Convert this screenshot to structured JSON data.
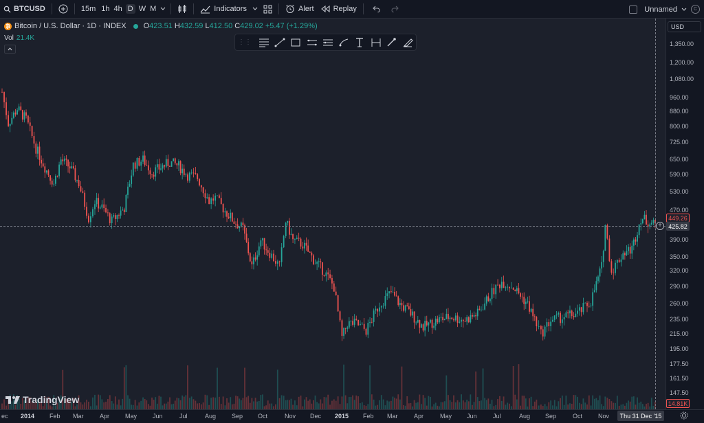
{
  "toolbar": {
    "symbol": "BTCUSD",
    "intervals": [
      "15m",
      "1h",
      "4h",
      "D",
      "W",
      "M"
    ],
    "active_interval": "D",
    "indicators_label": "Indicators",
    "alert_label": "Alert",
    "replay_label": "Replay",
    "layout_name": "Unnamed"
  },
  "legend": {
    "title": "Bitcoin / U.S. Dollar · 1D · INDEX",
    "open_k": "O",
    "open": "423.51",
    "high_k": "H",
    "high": "432.59",
    "low_k": "L",
    "low": "412.50",
    "close_k": "C",
    "close": "429.02",
    "change": "+5.47 (+1.29%)",
    "vol_label": "Vol",
    "vol_value": "21.4K"
  },
  "price_axis": {
    "currency": "USD",
    "labels": [
      "1,350.00",
      "1,200.00",
      "1,080.00",
      "960.00",
      "880.00",
      "800.00",
      "725.00",
      "650.00",
      "590.00",
      "530.00",
      "470.00",
      "390.00",
      "350.00",
      "320.00",
      "290.00",
      "260.00",
      "235.00",
      "215.00",
      "195.00",
      "177.50",
      "161.50",
      "147.50"
    ],
    "last_price": "449.26",
    "crosshair_price": "425.82",
    "volume_tag": "14.81K"
  },
  "time_axis": {
    "labels": [
      "ec",
      "2014",
      "Feb",
      "Mar",
      "Apr",
      "May",
      "Jun",
      "Jul",
      "Aug",
      "Sep",
      "Oct",
      "Nov",
      "Dec",
      "2015",
      "Feb",
      "Mar",
      "Apr",
      "May",
      "Jun",
      "Jul",
      "Aug",
      "Sep",
      "Oct",
      "Nov"
    ],
    "crosshair_date": "Thu 31 Dec '15"
  },
  "brand": {
    "name": "TradingView"
  },
  "colors": {
    "up": "#26a69a",
    "down": "#ef5350",
    "background": "#1e222d",
    "accent": "#f7931a"
  },
  "chart_data": {
    "type": "candlestick",
    "price_scale": "log",
    "ylim": [
      140,
      1500
    ],
    "series": [
      {
        "name": "Bitcoin / U.S. Dollar",
        "dates": [
          "2013-12-29",
          "2014-01-05",
          "2014-01-15",
          "2014-01-25",
          "2014-02-05",
          "2014-02-15",
          "2014-02-25",
          "2014-03-05",
          "2014-03-15",
          "2014-03-25",
          "2014-04-05",
          "2014-04-12",
          "2014-04-20",
          "2014-05-01",
          "2014-05-15",
          "2014-05-25",
          "2014-06-05",
          "2014-06-15",
          "2014-06-25",
          "2014-07-05",
          "2014-07-15",
          "2014-07-25",
          "2014-08-05",
          "2014-08-18",
          "2014-08-25",
          "2014-09-05",
          "2014-09-15",
          "2014-09-25",
          "2014-10-05",
          "2014-10-15",
          "2014-10-25",
          "2014-11-05",
          "2014-11-12",
          "2014-11-20",
          "2014-12-01",
          "2014-12-15",
          "2014-12-25",
          "2015-01-05",
          "2015-01-14",
          "2015-01-20",
          "2015-01-30",
          "2015-02-10",
          "2015-02-25",
          "2015-03-10",
          "2015-03-20",
          "2015-04-01",
          "2015-04-15",
          "2015-05-01",
          "2015-05-15",
          "2015-06-01",
          "2015-06-15",
          "2015-07-01",
          "2015-07-12",
          "2015-07-25",
          "2015-08-10",
          "2015-08-20",
          "2015-08-25",
          "2015-09-05",
          "2015-09-20",
          "2015-10-05",
          "2015-10-20",
          "2015-11-01",
          "2015-11-05",
          "2015-11-12",
          "2015-11-25",
          "2015-12-05",
          "2015-12-15",
          "2015-12-31"
        ],
        "close": [
          1000,
          820,
          900,
          840,
          700,
          620,
          560,
          650,
          620,
          560,
          450,
          500,
          480,
          440,
          480,
          630,
          650,
          600,
          620,
          640,
          625,
          590,
          580,
          500,
          510,
          470,
          440,
          420,
          330,
          390,
          360,
          330,
          440,
          390,
          380,
          340,
          320,
          290,
          210,
          230,
          230,
          220,
          260,
          280,
          260,
          245,
          225,
          235,
          240,
          235,
          245,
          280,
          300,
          290,
          260,
          230,
          215,
          235,
          240,
          245,
          265,
          330,
          430,
          320,
          360,
          370,
          450,
          429
        ]
      }
    ]
  }
}
